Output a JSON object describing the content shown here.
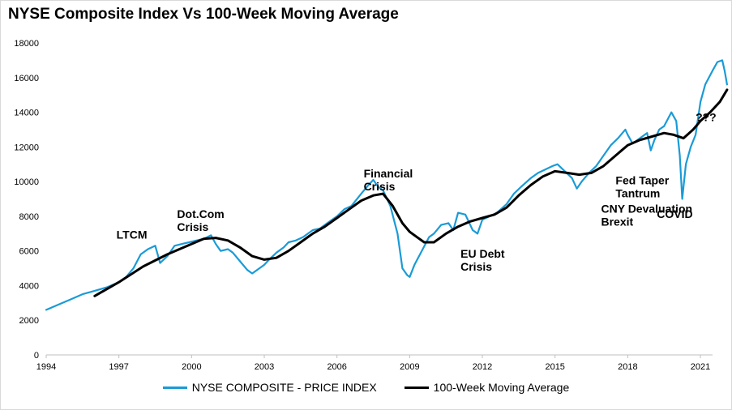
{
  "chart_data": {
    "type": "line",
    "title": "NYSE Composite Index Vs 100-Week Moving Average",
    "xlabel": "",
    "ylabel": "",
    "xlim": [
      1994,
      2021.5
    ],
    "ylim": [
      0,
      18000
    ],
    "x_ticks": [
      "1994",
      "1997",
      "2000",
      "2003",
      "2006",
      "2009",
      "2012",
      "2015",
      "2018",
      "2021"
    ],
    "y_ticks": [
      "0",
      "2000",
      "4000",
      "6000",
      "8000",
      "10000",
      "12000",
      "14000",
      "16000",
      "18000"
    ],
    "grid": false,
    "legend_position": "bottom",
    "series": [
      {
        "name": "NYSE COMPOSITE - PRICE INDEX",
        "color": "#1a9bd7",
        "x": [
          1994.0,
          1994.5,
          1995.0,
          1995.5,
          1996.0,
          1996.5,
          1997.0,
          1997.3,
          1997.6,
          1997.9,
          1998.2,
          1998.5,
          1998.7,
          1999.0,
          1999.3,
          1999.6,
          1999.9,
          2000.2,
          2000.5,
          2000.8,
          2001.0,
          2001.2,
          2001.5,
          2001.7,
          2002.0,
          2002.3,
          2002.5,
          2002.8,
          2003.0,
          2003.2,
          2003.5,
          2003.8,
          2004.0,
          2004.3,
          2004.6,
          2005.0,
          2005.3,
          2005.6,
          2006.0,
          2006.3,
          2006.6,
          2007.0,
          2007.3,
          2007.5,
          2007.7,
          2007.9,
          2008.2,
          2008.5,
          2008.7,
          2008.9,
          2009.0,
          2009.2,
          2009.5,
          2009.8,
          2010.0,
          2010.3,
          2010.6,
          2010.8,
          2011.0,
          2011.3,
          2011.6,
          2011.8,
          2012.0,
          2012.3,
          2012.6,
          2013.0,
          2013.3,
          2013.6,
          2014.0,
          2014.3,
          2014.6,
          2014.9,
          2015.1,
          2015.4,
          2015.7,
          2015.9,
          2016.1,
          2016.4,
          2016.7,
          2017.0,
          2017.3,
          2017.6,
          2017.9,
          2018.0,
          2018.2,
          2018.5,
          2018.8,
          2018.95,
          2019.1,
          2019.3,
          2019.5,
          2019.8,
          2020.0,
          2020.15,
          2020.25,
          2020.4,
          2020.6,
          2020.8,
          2021.0,
          2021.2,
          2021.5,
          2021.7,
          2021.9,
          2022.0,
          2022.1
        ],
        "values": [
          2600,
          2900,
          3200,
          3500,
          3700,
          3900,
          4200,
          4500,
          5000,
          5800,
          6100,
          6300,
          5300,
          5700,
          6300,
          6400,
          6500,
          6600,
          6700,
          6900,
          6400,
          6000,
          6100,
          5900,
          5400,
          4900,
          4700,
          5000,
          5200,
          5500,
          5900,
          6200,
          6500,
          6600,
          6800,
          7200,
          7300,
          7600,
          8000,
          8400,
          8600,
          9300,
          9800,
          10100,
          9700,
          9500,
          8600,
          7000,
          5000,
          4600,
          4500,
          5200,
          6000,
          6800,
          7000,
          7500,
          7600,
          7200,
          8200,
          8100,
          7200,
          7000,
          7800,
          8000,
          8200,
          8700,
          9300,
          9700,
          10200,
          10500,
          10700,
          10900,
          11000,
          10600,
          10200,
          9600,
          10000,
          10500,
          10900,
          11500,
          12100,
          12500,
          13000,
          12700,
          12200,
          12500,
          12800,
          11800,
          12400,
          13000,
          13200,
          14000,
          13500,
          11500,
          9000,
          11000,
          12000,
          12700,
          14600,
          15600,
          16400,
          16900,
          17000,
          16400,
          15600
        ]
      },
      {
        "name": "100-Week Moving Average",
        "color": "#000000",
        "x": [
          1996.0,
          1997.0,
          1998.0,
          1999.0,
          2000.0,
          2000.5,
          2001.0,
          2001.5,
          2002.0,
          2002.5,
          2003.0,
          2003.5,
          2004.0,
          2004.5,
          2005.0,
          2005.5,
          2006.0,
          2006.5,
          2007.0,
          2007.5,
          2007.9,
          2008.3,
          2008.7,
          2009.0,
          2009.3,
          2009.6,
          2010.0,
          2010.5,
          2011.0,
          2011.5,
          2012.0,
          2012.5,
          2013.0,
          2013.5,
          2014.0,
          2014.5,
          2015.0,
          2015.5,
          2016.0,
          2016.5,
          2017.0,
          2017.5,
          2018.0,
          2018.5,
          2019.0,
          2019.5,
          2019.9,
          2020.3,
          2020.7,
          2021.0,
          2021.4,
          2021.8,
          2022.1
        ],
        "values": [
          3400,
          4200,
          5100,
          5800,
          6400,
          6700,
          6750,
          6600,
          6200,
          5700,
          5500,
          5600,
          6000,
          6500,
          7000,
          7400,
          7900,
          8400,
          8900,
          9200,
          9300,
          8600,
          7600,
          7100,
          6800,
          6500,
          6500,
          7000,
          7400,
          7700,
          7900,
          8100,
          8500,
          9200,
          9800,
          10300,
          10600,
          10500,
          10400,
          10500,
          10900,
          11500,
          12100,
          12400,
          12600,
          12800,
          12700,
          12500,
          13000,
          13500,
          14000,
          14600,
          15300
        ]
      }
    ],
    "annotations": [
      {
        "text": [
          "LTCM"
        ],
        "x": 1996.9,
        "y": 6700
      },
      {
        "text": [
          "Dot.Com",
          "Crisis"
        ],
        "x": 1999.4,
        "y": 7900
      },
      {
        "text": [
          "Financial",
          "Crisis"
        ],
        "x": 2007.1,
        "y": 10250
      },
      {
        "text": [
          "EU Debt",
          "Crisis"
        ],
        "x": 2011.1,
        "y": 5600
      },
      {
        "text": [
          "CNY Devaluation",
          "Brexit"
        ],
        "x": 2016.9,
        "y": 8200
      },
      {
        "text": [
          "Fed Taper",
          "Tantrum"
        ],
        "x": 2017.5,
        "y": 9850
      },
      {
        "text": [
          "COVID"
        ],
        "x": 2019.2,
        "y": 7900
      },
      {
        "text": [
          "???"
        ],
        "x": 2020.8,
        "y": 13500
      }
    ]
  }
}
